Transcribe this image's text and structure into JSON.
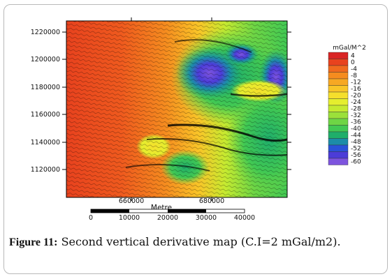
{
  "caption": {
    "label": "Figure 11:",
    "text": " Second vertical derivative map (C.I=2 mGal/m2)."
  },
  "map": {
    "y_ticks": [
      "1220000",
      "1200000",
      "1180000",
      "1160000",
      "1140000",
      "1120000"
    ],
    "x_ticks": [
      "660000",
      "680000"
    ],
    "x_axis_label": "Metre"
  },
  "scale_bar": {
    "labels": [
      "0",
      "10000",
      "20000",
      "30000",
      "40000"
    ]
  },
  "colorbar": {
    "unit": "mGal/M^2",
    "labels": [
      "4",
      "0",
      "-4",
      "-8",
      "-12",
      "-16",
      "-20",
      "-24",
      "-28",
      "-32",
      "-36",
      "-40",
      "-44",
      "-48",
      "-52",
      "-56",
      "-60"
    ],
    "colors": [
      "#d92424",
      "#e8421e",
      "#f06a1e",
      "#f58c1f",
      "#f7a823",
      "#f9c528",
      "#f5df2c",
      "#e5ee2e",
      "#c5ea30",
      "#9be03a",
      "#6ed545",
      "#41c853",
      "#1fae6a",
      "#1c8ca8",
      "#2a52d8",
      "#4c3cd8",
      "#7d54de"
    ]
  }
}
